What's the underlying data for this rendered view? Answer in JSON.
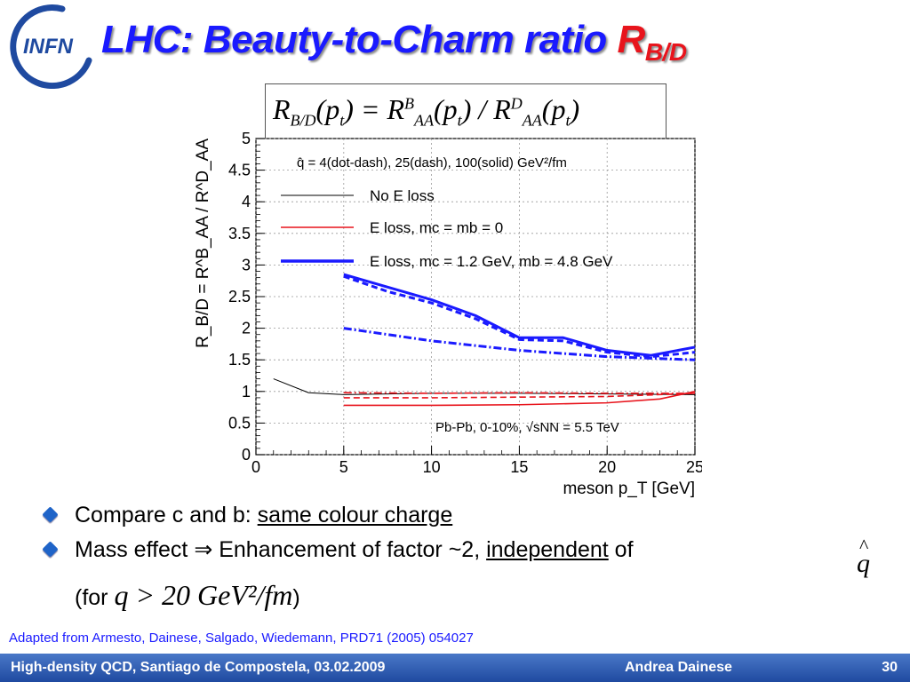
{
  "logo": {
    "text": "INFN"
  },
  "title": {
    "main": "LHC: Beauty-to-Charm ratio ",
    "symbol": "R",
    "subscript": "B/D"
  },
  "formula": {
    "text": "R_{B/D}(p_t) = R^B_{AA}(p_t) / R^D_{AA}(p_t)"
  },
  "chart_data": {
    "type": "line",
    "title": "",
    "xlabel": "meson p_T [GeV]",
    "ylabel": "R_B/D = R^B_AA / R^D_AA",
    "xlim": [
      0,
      25
    ],
    "ylim": [
      0,
      5
    ],
    "x_ticks": [
      "0",
      "5",
      "10",
      "15",
      "20",
      "25"
    ],
    "y_ticks": [
      "0",
      "0.5",
      "1",
      "1.5",
      "2",
      "2.5",
      "3",
      "3.5",
      "4",
      "4.5",
      "5"
    ],
    "annotations": [
      "q̂ = 4(dot-dash), 25(dash), 100(solid) GeV²/fm",
      "Pb-Pb, 0-10%, √sNN = 5.5 TeV"
    ],
    "legend": {
      "placement": "top-left",
      "entries": [
        {
          "label": "No E loss",
          "color": "#000000"
        },
        {
          "label": "E loss, mc = mb = 0",
          "color": "#e8141c"
        },
        {
          "label": "E loss, mc = 1.2 GeV, mb = 4.8 GeV",
          "color": "#1a1aff"
        }
      ]
    },
    "series": [
      {
        "name": "No E loss",
        "color": "#000000",
        "style": "solid",
        "x": [
          1,
          3,
          5,
          7.5,
          10,
          15,
          20,
          25
        ],
        "y": [
          1.2,
          0.98,
          0.95,
          0.96,
          0.97,
          0.97,
          0.96,
          0.95
        ]
      },
      {
        "color": "#e8141c",
        "style": "solid",
        "x": [
          5,
          10,
          15,
          20,
          23,
          25
        ],
        "y": [
          0.78,
          0.78,
          0.79,
          0.82,
          0.88,
          1.0
        ]
      },
      {
        "color": "#e8141c",
        "style": "dash",
        "x": [
          5,
          10,
          15,
          20,
          25
        ],
        "y": [
          0.9,
          0.9,
          0.91,
          0.92,
          0.97
        ]
      },
      {
        "color": "#e8141c",
        "style": "dotdash",
        "x": [
          5,
          10,
          15,
          20,
          25
        ],
        "y": [
          0.98,
          0.97,
          0.98,
          0.97,
          0.97
        ]
      },
      {
        "color": "#1a1aff",
        "style": "solid",
        "x": [
          5,
          7.5,
          10,
          12.5,
          15,
          17.5,
          20,
          22.5,
          25
        ],
        "y": [
          2.85,
          2.65,
          2.45,
          2.2,
          1.85,
          1.85,
          1.65,
          1.57,
          1.7
        ]
      },
      {
        "color": "#1a1aff",
        "style": "dash",
        "x": [
          5,
          7.5,
          10,
          12.5,
          15,
          17.5,
          20,
          22.5,
          25
        ],
        "y": [
          2.82,
          2.58,
          2.4,
          2.15,
          1.82,
          1.8,
          1.62,
          1.55,
          1.62
        ]
      },
      {
        "color": "#1a1aff",
        "style": "dotdash",
        "x": [
          5,
          10,
          15,
          20,
          25
        ],
        "y": [
          2.0,
          1.8,
          1.65,
          1.55,
          1.5
        ]
      }
    ]
  },
  "bullets": {
    "b1": {
      "prefix": "Compare c and b: ",
      "underlined": "same colour charge"
    },
    "b2": {
      "prefix": "Mass effect ⇒ Enhancement of factor ~2, ",
      "underlined": "independent",
      "suffix": " of"
    },
    "q_symbol": "q",
    "condition": {
      "prefix": "(for ",
      "math": "q > 20 GeV²/fm",
      "suffix": ")"
    }
  },
  "reference": "Adapted from Armesto, Dainese, Salgado, Wiedemann, PRD71 (2005) 054027",
  "footer": {
    "left": "High-density QCD, Santiago de Compostela, 03.02.2009",
    "center": "Andrea Dainese",
    "page": "30"
  }
}
